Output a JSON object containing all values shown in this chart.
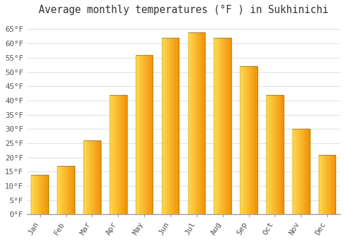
{
  "title": "Average monthly temperatures (°F ) in Sukhinichi",
  "months": [
    "Jan",
    "Feb",
    "Mar",
    "Apr",
    "May",
    "Jun",
    "Jul",
    "Aug",
    "Sep",
    "Oct",
    "Nov",
    "Dec"
  ],
  "values": [
    14,
    17,
    26,
    42,
    56,
    62,
    64,
    62,
    52,
    42,
    30,
    21
  ],
  "bar_color_light": "#FFB300",
  "bar_color_dark": "#E08000",
  "bar_top_color": "#FFCC44",
  "yticks": [
    0,
    5,
    10,
    15,
    20,
    25,
    30,
    35,
    40,
    45,
    50,
    55,
    60,
    65
  ],
  "ylim": [
    0,
    68
  ],
  "background_color": "#FFFFFF",
  "plot_bg_color": "#FFFFFF",
  "grid_color": "#E0E0E0",
  "title_fontsize": 10.5,
  "tick_fontsize": 8,
  "axis_color": "#555555",
  "font_family": "monospace"
}
